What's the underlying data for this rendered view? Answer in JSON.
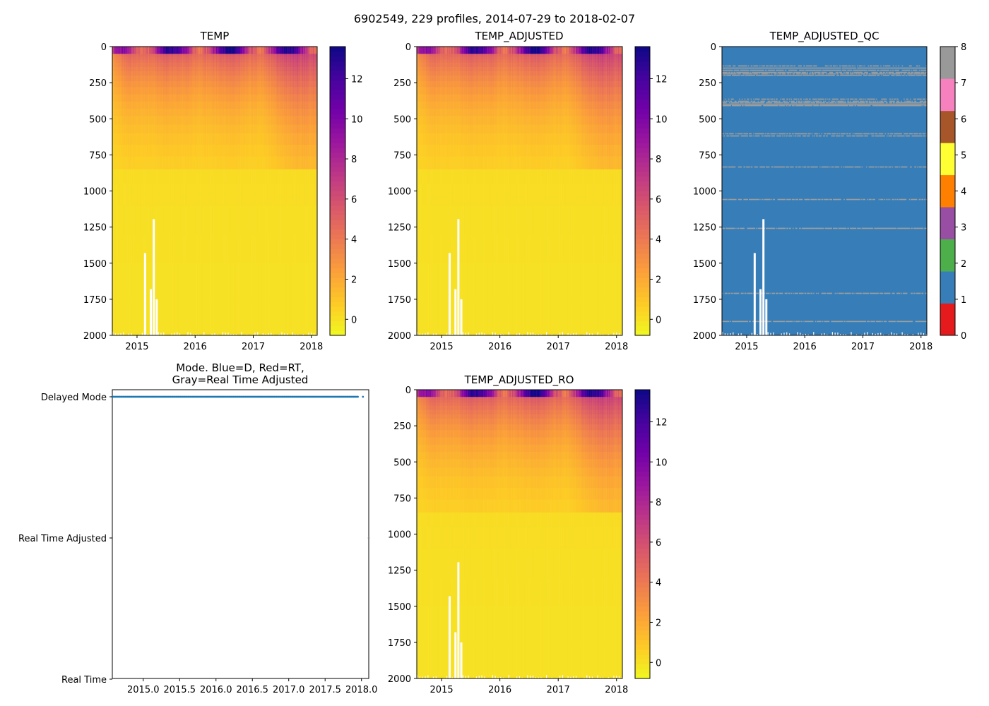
{
  "suptitle": "6902549, 229 profiles, 2014-07-29 to 2018-02-07",
  "colors": {
    "plasma_stops": [
      "#0d0887",
      "#46039f",
      "#7201a8",
      "#9c179e",
      "#bd3786",
      "#d8576b",
      "#ed7953",
      "#fb9f3a",
      "#fdca26",
      "#f0f921"
    ],
    "qc_colors": [
      "#e41a1c",
      "#377eb8",
      "#4daf4a",
      "#984ea3",
      "#ff7f00",
      "#ffff33",
      "#a65628",
      "#f781bf",
      "#999999"
    ],
    "mode_delayed": "#1f77b4",
    "qc_missing": "#9e9e9e"
  },
  "chart_data": [
    {
      "id": "temp",
      "type": "heatmap",
      "title": "TEMP",
      "xlabel": "",
      "ylabel": "",
      "xlim": [
        2014.575,
        2018.1
      ],
      "ylim": [
        2000,
        0
      ],
      "x_ticks": [
        2015,
        2016,
        2017,
        2018
      ],
      "x_tick_labels": [
        "2015",
        "2016",
        "2017",
        "2018"
      ],
      "y_ticks": [
        0,
        250,
        500,
        750,
        1000,
        1250,
        1500,
        1750,
        2000
      ],
      "y_tick_labels": [
        "0",
        "250",
        "500",
        "750",
        "1000",
        "1250",
        "1500",
        "1750",
        "2000"
      ],
      "colorbar": {
        "cmap": "plasma_r",
        "vmin": -0.8,
        "vmax": 13.6,
        "ticks": [
          0,
          2,
          4,
          6,
          8,
          10,
          12
        ],
        "tick_labels": [
          "0",
          "2",
          "4",
          "6",
          "8",
          "10",
          "12"
        ]
      },
      "summary": "Temperature (deg C) vs time and pressure: ~10-13 near surface in summer, ~3-6 to 500 dbar, ~0-1 below 800 dbar"
    },
    {
      "id": "temp_adj",
      "type": "heatmap",
      "title": "TEMP_ADJUSTED",
      "xlabel": "",
      "ylabel": "",
      "xlim": [
        2014.575,
        2018.1
      ],
      "ylim": [
        2000,
        0
      ],
      "x_ticks": [
        2015,
        2016,
        2017,
        2018
      ],
      "x_tick_labels": [
        "2015",
        "2016",
        "2017",
        "2018"
      ],
      "y_ticks": [
        0,
        250,
        500,
        750,
        1000,
        1250,
        1500,
        1750,
        2000
      ],
      "y_tick_labels": [
        "0",
        "250",
        "500",
        "750",
        "1000",
        "1250",
        "1500",
        "1750",
        "2000"
      ],
      "colorbar": {
        "cmap": "plasma_r",
        "vmin": -0.8,
        "vmax": 13.6,
        "ticks": [
          0,
          2,
          4,
          6,
          8,
          10,
          12
        ],
        "tick_labels": [
          "0",
          "2",
          "4",
          "6",
          "8",
          "10",
          "12"
        ]
      }
    },
    {
      "id": "qc",
      "type": "heatmap",
      "title": "TEMP_ADJUSTED_QC",
      "xlabel": "",
      "ylabel": "",
      "xlim": [
        2014.575,
        2018.1
      ],
      "ylim": [
        2000,
        0
      ],
      "x_ticks": [
        2015,
        2016,
        2017,
        2018
      ],
      "x_tick_labels": [
        "2015",
        "2016",
        "2017",
        "2018"
      ],
      "y_ticks": [
        0,
        250,
        500,
        750,
        1000,
        1250,
        1500,
        1750,
        2000
      ],
      "y_tick_labels": [
        "0",
        "250",
        "500",
        "750",
        "1000",
        "1250",
        "1500",
        "1750",
        "2000"
      ],
      "colorbar": {
        "type": "discrete",
        "vmin": 0,
        "vmax": 8,
        "ticks": [
          0,
          1,
          2,
          3,
          4,
          5,
          6,
          7,
          8
        ],
        "tick_labels": [
          "0",
          "1",
          "2",
          "3",
          "4",
          "5",
          "6",
          "7",
          "8"
        ]
      },
      "dominant_flag": 1,
      "secondary_flag": 8,
      "flag8_levels_dbar": [
        130,
        145,
        160,
        175,
        185,
        195,
        360,
        375,
        385,
        395,
        405,
        600,
        615,
        830,
        1055,
        1255,
        1705,
        1900
      ]
    },
    {
      "id": "mode",
      "type": "scatter",
      "title_lines": [
        "Mode. Blue=D, Red=RT,",
        "Gray=Real Time Adjusted"
      ],
      "xlabel": "",
      "ylabel": "",
      "xlim": [
        2014.575,
        2018.1
      ],
      "ylim": [
        0,
        2
      ],
      "x_ticks": [
        2015.0,
        2015.5,
        2016.0,
        2016.5,
        2017.0,
        2017.5,
        2018.0
      ],
      "x_tick_labels": [
        "2015.0",
        "2015.5",
        "2016.0",
        "2016.5",
        "2017.0",
        "2017.5",
        "2018.0"
      ],
      "y_ticks": [
        2,
        1,
        0
      ],
      "y_tick_labels": [
        "Delayed Mode",
        "Real Time Adjusted",
        "Real Time"
      ],
      "series": [
        {
          "name": "D",
          "color": "#1f77b4",
          "x_start": 2014.575,
          "x_end": 2017.95,
          "count": 228,
          "y": 2,
          "extra_x": [
            2018.02
          ]
        },
        {
          "name": "Real Time Adjusted",
          "color": "#7f7f7f",
          "x": [
            2018.1
          ],
          "y": 1
        }
      ]
    },
    {
      "id": "temp_ro",
      "type": "heatmap",
      "title": "TEMP_ADJUSTED_RO",
      "xlabel": "",
      "ylabel": "",
      "xlim": [
        2014.575,
        2018.1
      ],
      "ylim": [
        2000,
        0
      ],
      "x_ticks": [
        2015,
        2016,
        2017,
        2018
      ],
      "x_tick_labels": [
        "2015",
        "2016",
        "2017",
        "2018"
      ],
      "y_ticks": [
        0,
        250,
        500,
        750,
        1000,
        1250,
        1500,
        1750,
        2000
      ],
      "y_tick_labels": [
        "0",
        "250",
        "500",
        "750",
        "1000",
        "1250",
        "1500",
        "1750",
        "2000"
      ],
      "colorbar": {
        "cmap": "plasma_r",
        "vmin": -0.8,
        "vmax": 13.6,
        "ticks": [
          0,
          2,
          4,
          6,
          8,
          10,
          12
        ],
        "tick_labels": [
          "0",
          "2",
          "4",
          "6",
          "8",
          "10",
          "12"
        ]
      }
    }
  ]
}
